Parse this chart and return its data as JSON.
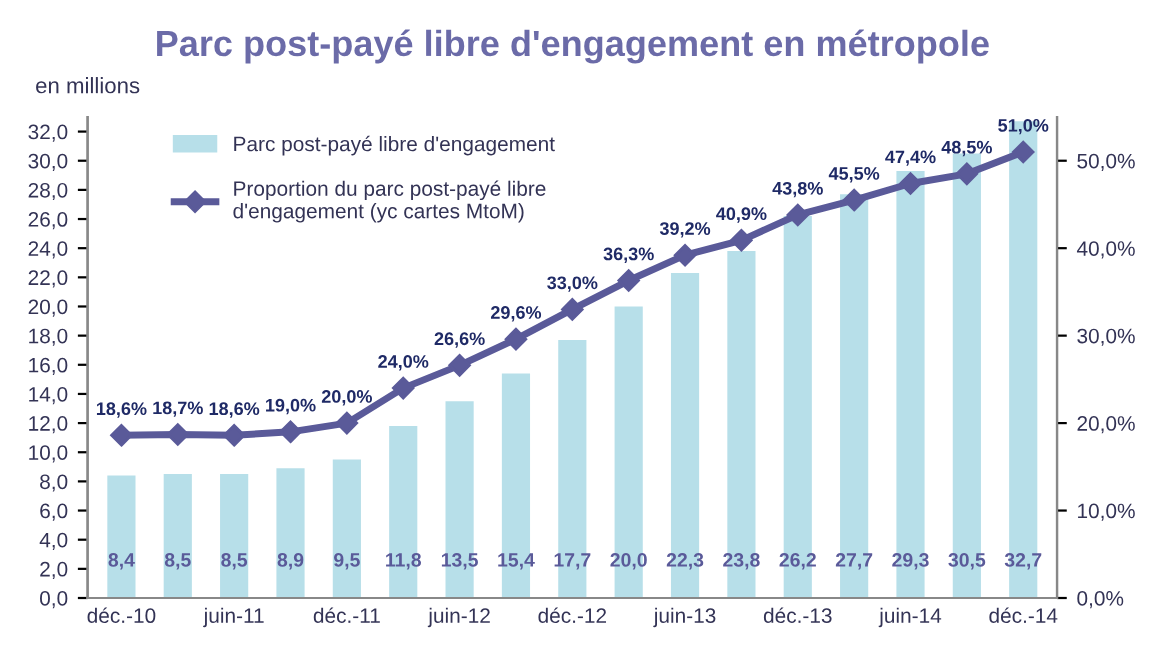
{
  "chart_data": {
    "type": "bar",
    "title": "Parc post-payé libre d'engagement en métropole",
    "ylabel": "en millions",
    "categories": [
      "déc.-10",
      null,
      "juin-11",
      null,
      "déc.-11",
      null,
      "juin-12",
      null,
      "déc.-12",
      null,
      "juin-13",
      null,
      "déc.-13",
      null,
      "juin-14",
      null,
      "déc.-14"
    ],
    "series": [
      {
        "name": "Parc post-payé libre d'engagement",
        "color": "#b7dfe9",
        "values": [
          8.4,
          8.5,
          8.5,
          8.9,
          9.5,
          11.8,
          13.5,
          15.4,
          17.7,
          20.0,
          22.3,
          23.8,
          26.2,
          27.7,
          29.3,
          30.5,
          32.7
        ],
        "value_labels": [
          "8,4",
          "8,5",
          "8,5",
          "8,9",
          "9,5",
          "11,8",
          "13,5",
          "15,4",
          "17,7",
          "20,0",
          "22,3",
          "23,8",
          "26,2",
          "27,7",
          "29,3",
          "30,5",
          "32,7"
        ]
      },
      {
        "name": "Proportion du parc post-payé libre d'engagement (yc cartes MtoM)",
        "type": "line",
        "axis": "y2",
        "color": "#5a5a99",
        "marker": "diamond",
        "line_style": "solid",
        "values": [
          18.6,
          18.7,
          18.6,
          19.0,
          20.0,
          24.0,
          26.6,
          29.6,
          33.0,
          36.3,
          39.2,
          40.9,
          43.8,
          45.5,
          47.4,
          48.5,
          51.0
        ],
        "value_labels": [
          "18,6%",
          "18,7%",
          "18,6%",
          "19,0%",
          "20,0%",
          "24,0%",
          "26,6%",
          "29,6%",
          "33,0%",
          "36,3%",
          "39,2%",
          "40,9%",
          "43,8%",
          "45,5%",
          "47,4%",
          "48,5%",
          "51,0%"
        ]
      }
    ],
    "ylim": [
      0,
      33
    ],
    "yticks": [
      {
        "value": 0,
        "label": "0,0"
      },
      {
        "value": 2,
        "label": "2,0"
      },
      {
        "value": 4,
        "label": "4,0"
      },
      {
        "value": 6,
        "label": "6,0"
      },
      {
        "value": 8,
        "label": "8,0"
      },
      {
        "value": 10,
        "label": "10,0"
      },
      {
        "value": 12,
        "label": "12,0"
      },
      {
        "value": 14,
        "label": "14,0"
      },
      {
        "value": 16,
        "label": "16,0"
      },
      {
        "value": 18,
        "label": "18,0"
      },
      {
        "value": 20,
        "label": "20,0"
      },
      {
        "value": 22,
        "label": "22,0"
      },
      {
        "value": 24,
        "label": "24,0"
      },
      {
        "value": 26,
        "label": "26,0"
      },
      {
        "value": 28,
        "label": "28,0"
      },
      {
        "value": 30,
        "label": "30,0"
      },
      {
        "value": 32,
        "label": "32,0"
      }
    ],
    "y2lim": [
      0,
      55
    ],
    "y2ticks": [
      {
        "value": 0,
        "label": "0,0%"
      },
      {
        "value": 10,
        "label": "10,0%"
      },
      {
        "value": 20,
        "label": "20,0%"
      },
      {
        "value": 30,
        "label": "30,0%"
      },
      {
        "value": 40,
        "label": "40,0%"
      },
      {
        "value": 50,
        "label": "50,0%"
      }
    ],
    "grid": false,
    "legend": "top left"
  }
}
